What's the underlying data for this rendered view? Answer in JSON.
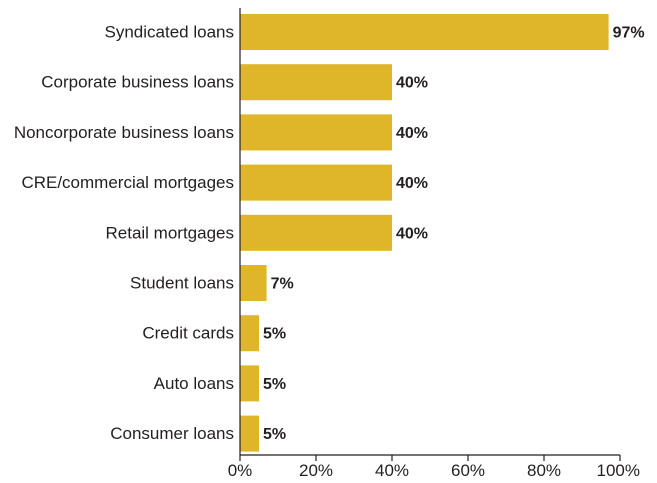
{
  "chart_data": {
    "type": "bar",
    "orientation": "horizontal",
    "categories": [
      "Syndicated loans",
      "Corporate business loans",
      "Noncorporate business loans",
      "CRE/commercial mortgages",
      "Retail mortgages",
      "Student loans",
      "Credit cards",
      "Auto loans",
      "Consumer loans"
    ],
    "values": [
      97,
      40,
      40,
      40,
      40,
      7,
      5,
      5,
      5
    ],
    "value_labels": [
      "97%",
      "40%",
      "40%",
      "40%",
      "40%",
      "7%",
      "5%",
      "5%",
      "5%"
    ],
    "xlim": [
      0,
      100
    ],
    "x_ticks": [
      0,
      20,
      40,
      60,
      80,
      100
    ],
    "x_tick_labels": [
      "0%",
      "20%",
      "40%",
      "60%",
      "80%",
      "100%"
    ],
    "grid": false,
    "legend": "none",
    "bar_color": "#dfb52a"
  }
}
